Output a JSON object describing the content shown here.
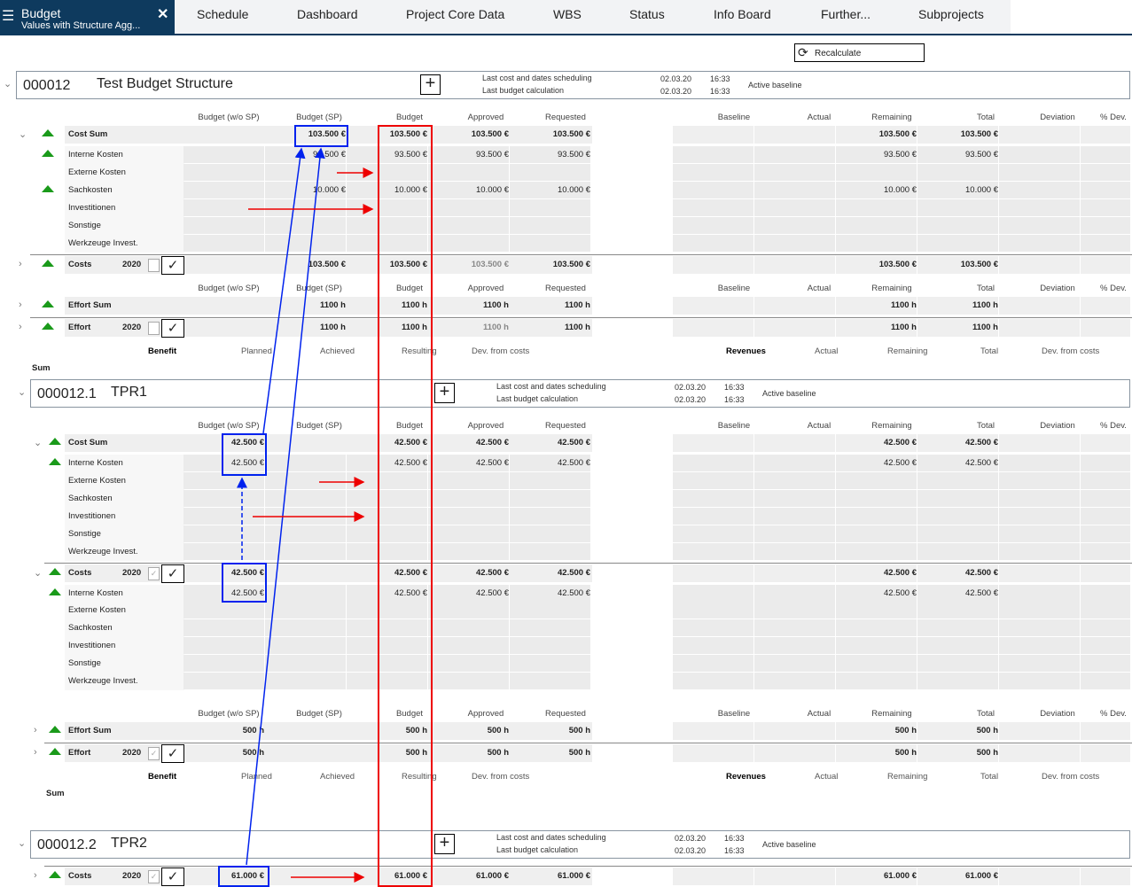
{
  "app": {
    "title": "Budget",
    "subtitle": "Values with Structure Agg...",
    "menu_icon": "hamburger-icon",
    "close_icon": "close-icon"
  },
  "tabs": [
    "Schedule",
    "Dashboard",
    "Project Core Data",
    "WBS",
    "Status",
    "Info Board",
    "Further...",
    "Subprojects"
  ],
  "recalculate": {
    "label": "Recalculate",
    "icon": "refresh-icon"
  },
  "labels": {
    "last_sched": "Last cost and dates scheduling",
    "last_calc": "Last budget calculation",
    "active_baseline": "Active baseline"
  },
  "col_headers": [
    "Budget (w/o SP)",
    "Budget (SP)",
    "Budget",
    "Approved",
    "Requested",
    "Baseline",
    "Actual",
    "Remaining",
    "Total",
    "Deviation",
    "% Dev."
  ],
  "benefit_headers": [
    "Benefit",
    "Planned",
    "Achieved",
    "Resulting",
    "Dev. from costs",
    "Revenues",
    "Actual",
    "Remaining",
    "Total",
    "Dev. from costs"
  ],
  "sum_label": "Sum",
  "projects": [
    {
      "id": "000012",
      "name": "Test Budget Structure",
      "sched_date": "02.03.20",
      "sched_time": "16:33",
      "calc_date": "02.03.20",
      "calc_time": "16:33"
    },
    {
      "id": "000012.1",
      "name": "TPR1",
      "sched_date": "02.03.20",
      "sched_time": "16:33",
      "calc_date": "02.03.20",
      "calc_time": "16:33"
    },
    {
      "id": "000012.2",
      "name": "TPR2",
      "sched_date": "02.03.20",
      "sched_time": "16:33",
      "calc_date": "02.03.20",
      "calc_time": "16:33"
    }
  ],
  "rows": [
    {
      "type": "hdr"
    },
    {
      "label": "Cost Sum",
      "bold": true,
      "tri": true,
      "chev": "down",
      "v": [
        "",
        "103.500 €",
        "103.500 €",
        "103.500 €",
        "103.500 €",
        "",
        "",
        "103.500 €",
        "103.500 €",
        "",
        ""
      ]
    },
    {
      "label": "Interne Kosten",
      "tri": true,
      "v": [
        "",
        "93.500 €",
        "93.500 €",
        "93.500 €",
        "93.500 €",
        "",
        "",
        "93.500 €",
        "93.500 €",
        "",
        ""
      ]
    },
    {
      "label": "Externe Kosten",
      "v": []
    },
    {
      "label": "Sachkosten",
      "tri": true,
      "v": [
        "",
        "10.000 €",
        "10.000 €",
        "10.000 €",
        "10.000 €",
        "",
        "",
        "10.000 €",
        "10.000 €",
        "",
        ""
      ]
    },
    {
      "label": "Investitionen",
      "v": []
    },
    {
      "label": "Sonstige",
      "v": []
    },
    {
      "label": "Werkzeuge Invest.",
      "v": []
    },
    {
      "label": "Costs",
      "year": "2020",
      "bold": true,
      "tri": true,
      "chev": "right",
      "checked": false,
      "v": [
        "",
        "103.500 €",
        "103.500 €",
        "103.500 €",
        "103.500 €",
        "",
        "",
        "103.500 €",
        "103.500 €",
        "",
        ""
      ]
    },
    {
      "type": "hdr"
    },
    {
      "label": "Effort Sum",
      "bold": true,
      "tri": true,
      "chev": "right",
      "v": [
        "",
        "1100 h",
        "1100 h",
        "1100 h",
        "1100 h",
        "",
        "",
        "1100 h",
        "1100 h",
        "",
        ""
      ]
    },
    {
      "label": "Effort",
      "year": "2020",
      "bold": true,
      "tri": true,
      "chev": "right",
      "checked": false,
      "v": [
        "",
        "1100 h",
        "1100 h",
        "1100 h",
        "1100 h",
        "",
        "",
        "1100 h",
        "1100 h",
        "",
        ""
      ]
    },
    {
      "type": "benefit"
    },
    {
      "type": "sum"
    },
    {
      "type": "project",
      "p": 1
    },
    {
      "type": "hdr"
    },
    {
      "label": "Cost Sum",
      "bold": true,
      "tri": true,
      "chev": "down",
      "v": [
        "42.500 €",
        "",
        "42.500 €",
        "42.500 €",
        "42.500 €",
        "",
        "",
        "42.500 €",
        "42.500 €",
        "",
        ""
      ]
    },
    {
      "label": "Interne Kosten",
      "tri": true,
      "v": [
        "42.500 €",
        "",
        "42.500 €",
        "42.500 €",
        "42.500 €",
        "",
        "",
        "42.500 €",
        "42.500 €",
        "",
        ""
      ]
    },
    {
      "label": "Externe Kosten",
      "v": []
    },
    {
      "label": "Sachkosten",
      "v": []
    },
    {
      "label": "Investitionen",
      "v": []
    },
    {
      "label": "Sonstige",
      "v": []
    },
    {
      "label": "Werkzeuge Invest.",
      "v": []
    },
    {
      "label": "Costs",
      "year": "2020",
      "bold": true,
      "tri": true,
      "chev": "down",
      "checked": true,
      "v": [
        "42.500 €",
        "",
        "42.500 €",
        "42.500 €",
        "42.500 €",
        "",
        "",
        "42.500 €",
        "42.500 €",
        "",
        ""
      ]
    },
    {
      "label": "Interne Kosten",
      "tri": true,
      "v": [
        "42.500 €",
        "",
        "42.500 €",
        "42.500 €",
        "42.500 €",
        "",
        "",
        "42.500 €",
        "42.500 €",
        "",
        ""
      ]
    },
    {
      "label": "Externe Kosten",
      "v": []
    },
    {
      "label": "Sachkosten",
      "v": []
    },
    {
      "label": "Investitionen",
      "v": []
    },
    {
      "label": "Sonstige",
      "v": []
    },
    {
      "label": "Werkzeuge Invest.",
      "v": []
    },
    {
      "type": "hdr"
    },
    {
      "label": "Effort Sum",
      "bold": true,
      "tri": true,
      "chev": "right",
      "v": [
        "500 h",
        "",
        "500 h",
        "500 h",
        "500 h",
        "",
        "",
        "500 h",
        "500 h",
        "",
        ""
      ]
    },
    {
      "label": "Effort",
      "year": "2020",
      "bold": true,
      "tri": true,
      "chev": "right",
      "checked": true,
      "v": [
        "500 h",
        "",
        "500 h",
        "500 h",
        "500 h",
        "",
        "",
        "500 h",
        "500 h",
        "",
        ""
      ]
    },
    {
      "type": "benefit"
    },
    {
      "type": "sum"
    },
    {
      "type": "project",
      "p": 2
    },
    {
      "label": "Costs",
      "year": "2020",
      "bold": true,
      "tri": true,
      "chev": "right",
      "checked": true,
      "v": [
        "61.000 €",
        "",
        "61.000 €",
        "61.000 €",
        "61.000 €",
        "",
        "",
        "61.000 €",
        "61.000 €",
        "",
        ""
      ]
    }
  ],
  "annotation_colors": {
    "blue": "#0022ee",
    "red": "#ee0000"
  },
  "colors": {
    "nav": "#0e3a5e",
    "positive": "#1a9a1a",
    "grid": "#efefef"
  }
}
